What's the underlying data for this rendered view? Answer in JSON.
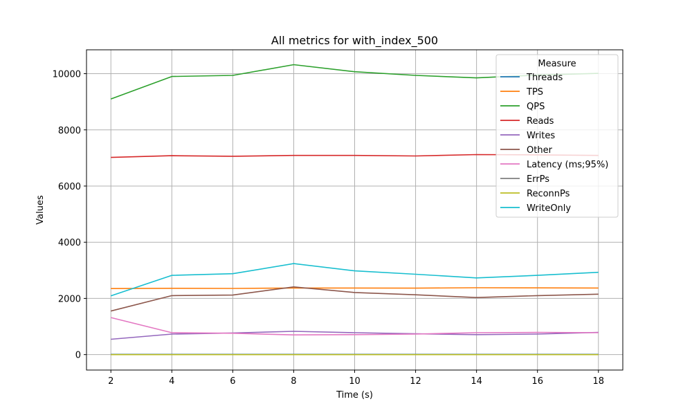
{
  "chart_data": {
    "type": "line",
    "title": "All metrics for with_index_500",
    "xlabel": "Time (s)",
    "ylabel": "Values",
    "xlim": [
      1.2,
      18.8
    ],
    "ylim": [
      -550,
      10850
    ],
    "xticks": [
      2,
      4,
      6,
      8,
      10,
      12,
      14,
      16,
      18
    ],
    "yticks": [
      0,
      2000,
      4000,
      6000,
      8000,
      10000
    ],
    "grid": true,
    "legend": {
      "title": "Measure",
      "position": "top-right"
    },
    "x": [
      2,
      4,
      6,
      8,
      10,
      12,
      14,
      16,
      18
    ],
    "series": [
      {
        "name": "Threads",
        "color": "#1f77b4",
        "values": [
          8,
          8,
          8,
          8,
          8,
          8,
          8,
          8,
          8
        ]
      },
      {
        "name": "TPS",
        "color": "#ff7f0e",
        "values": [
          2350,
          2360,
          2355,
          2370,
          2370,
          2365,
          2380,
          2375,
          2370
        ]
      },
      {
        "name": "QPS",
        "color": "#2ca02c",
        "values": [
          9100,
          9900,
          9940,
          10320,
          10070,
          9940,
          9850,
          9950,
          10010
        ]
      },
      {
        "name": "Reads",
        "color": "#d62728",
        "values": [
          7020,
          7080,
          7060,
          7090,
          7090,
          7070,
          7120,
          7110,
          7090
        ]
      },
      {
        "name": "Writes",
        "color": "#9467bd",
        "values": [
          545,
          730,
          770,
          830,
          780,
          740,
          710,
          730,
          790
        ]
      },
      {
        "name": "Other",
        "color": "#8c564b",
        "values": [
          1550,
          2100,
          2120,
          2410,
          2210,
          2130,
          2030,
          2100,
          2150
        ]
      },
      {
        "name": "Latency (ms;95%)",
        "color": "#e377c2",
        "values": [
          1320,
          780,
          760,
          700,
          710,
          730,
          780,
          790,
          780
        ]
      },
      {
        "name": "ErrPs",
        "color": "#7f7f7f",
        "values": [
          0,
          0,
          0,
          0,
          0,
          0,
          0,
          0,
          0
        ]
      },
      {
        "name": "ReconnPs",
        "color": "#bcbd22",
        "values": [
          0,
          0,
          0,
          0,
          0,
          0,
          0,
          0,
          0
        ]
      },
      {
        "name": "WriteOnly",
        "color": "#17becf",
        "values": [
          2090,
          2820,
          2880,
          3240,
          2980,
          2860,
          2730,
          2820,
          2930
        ]
      }
    ]
  }
}
